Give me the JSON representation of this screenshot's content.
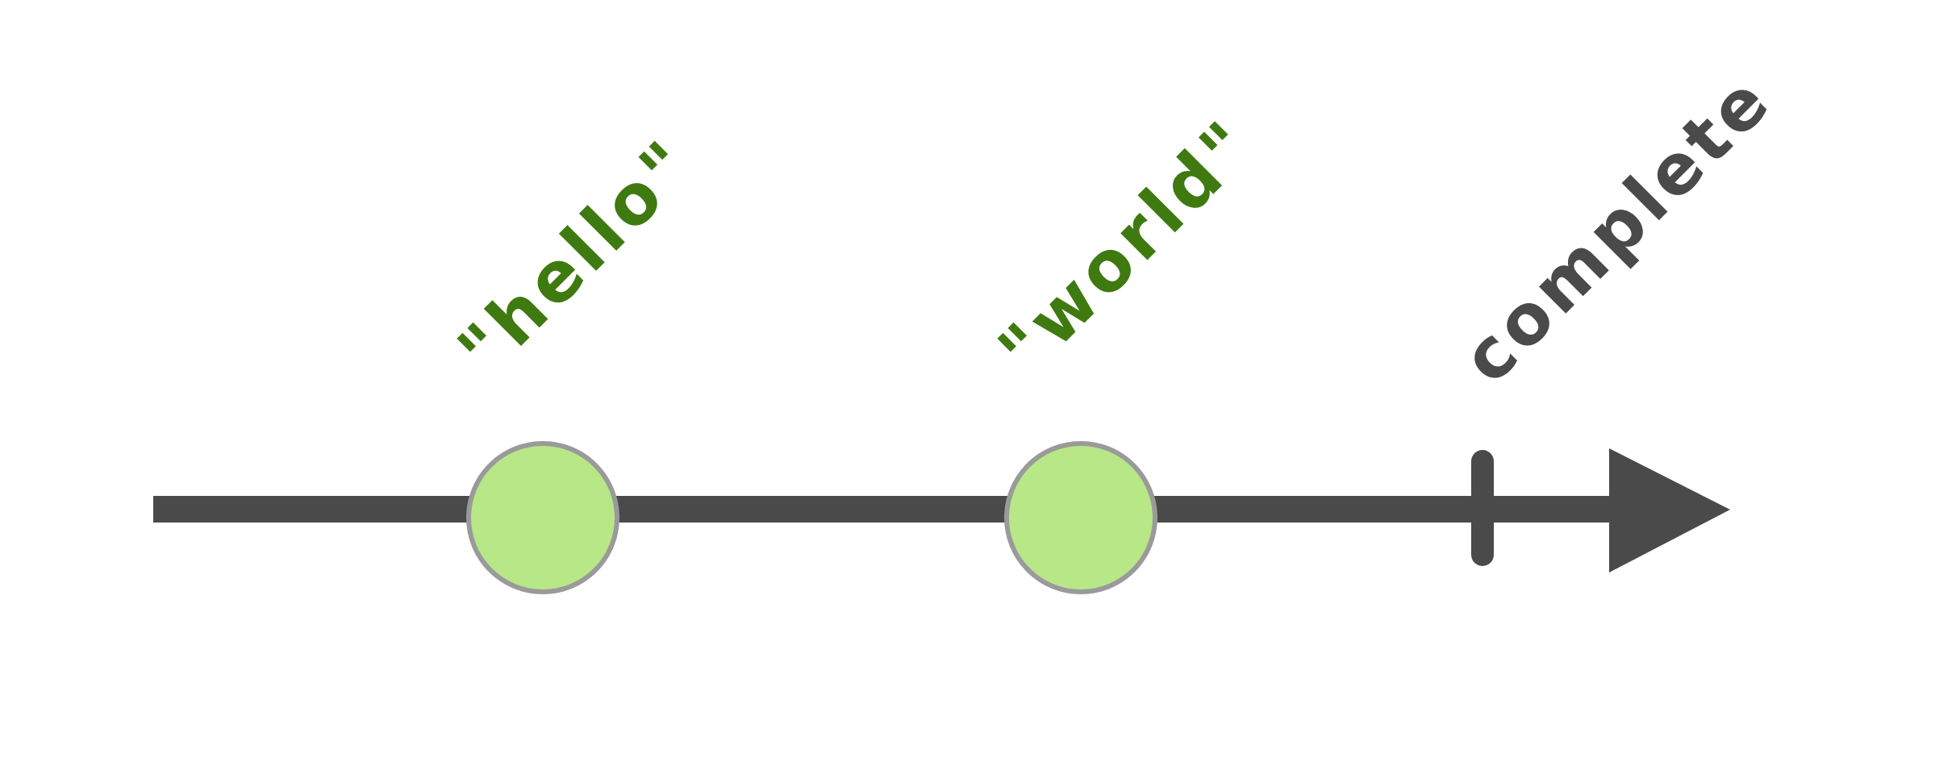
{
  "diagram": {
    "type": "marble-diagram",
    "events": [
      {
        "label": "\"hello\"",
        "color": "#3f7a10",
        "marble_fill": "#b8e787",
        "marble_stroke": "#9a9a9a"
      },
      {
        "label": "\"world\"",
        "color": "#3f7a10",
        "marble_fill": "#b8e787",
        "marble_stroke": "#9a9a9a"
      }
    ],
    "completion": {
      "label": "complete",
      "color": "#4a4a4a"
    },
    "line_color": "#4a4a4a"
  }
}
